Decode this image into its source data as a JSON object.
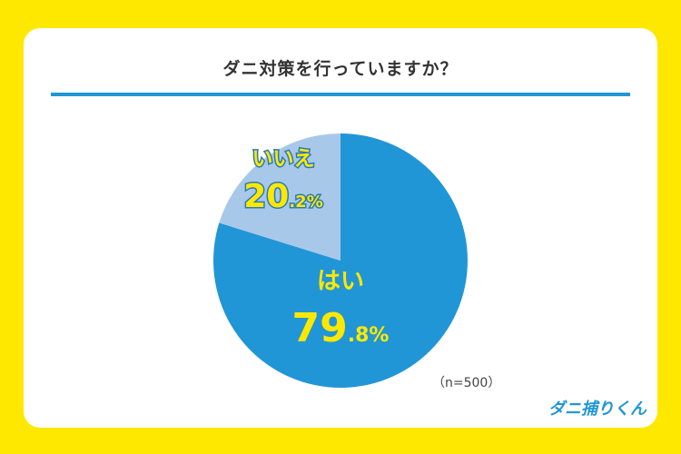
{
  "title": "ダニ対策を行っていますか？",
  "sample_note": "（n=500）",
  "logo_text": "ダニ捕りくん",
  "colors": {
    "background": "#FFE800",
    "accent": "#2196D6",
    "secondary_slice": "#A8C8EA",
    "label_yellow": "#FFE800"
  },
  "chart_data": {
    "type": "pie",
    "title": "ダニ対策を行っていますか？",
    "slices": [
      {
        "label": "はい",
        "value": 79.8,
        "int_part": "79",
        "dec_part": ".8%",
        "color": "#2196D6"
      },
      {
        "label": "いいえ",
        "value": 20.2,
        "int_part": "20",
        "dec_part": ".2%",
        "color": "#A8C8EA"
      }
    ],
    "start": "12 o'clock",
    "direction": "clockwise"
  }
}
